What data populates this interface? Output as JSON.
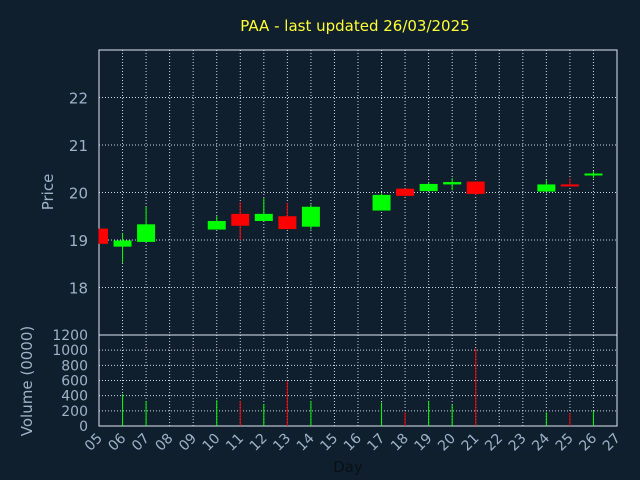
{
  "chart_data": {
    "type": "candlestick",
    "title": "PAA - last updated 26/03/2025",
    "xlabel": "Day",
    "price_label": "Price",
    "volume_label": "Volume (0000)",
    "price_ylim": [
      17,
      23
    ],
    "price_ticks": [
      18,
      19,
      20,
      21,
      22
    ],
    "volume_ylim": [
      0,
      1200
    ],
    "volume_ticks": [
      0,
      200,
      400,
      600,
      800,
      1000,
      1200
    ],
    "x_ticks": [
      "05",
      "06",
      "07",
      "08",
      "09",
      "10",
      "11",
      "12",
      "13",
      "14",
      "15",
      "16",
      "17",
      "18",
      "19",
      "20",
      "21",
      "22",
      "23",
      "24",
      "25",
      "26",
      "27"
    ],
    "grid": true,
    "colors": {
      "background": "#0f1f2e",
      "plot_border": "#dfe8f0",
      "grid": "#cfd8e0",
      "title": "#ffff33",
      "text": "#9fb3c8",
      "up": "#00ff00",
      "down": "#ff0000"
    },
    "candles": [
      {
        "day": "05",
        "open": 19.24,
        "high": 19.24,
        "low": 18.92,
        "close": 18.92
      },
      {
        "day": "06",
        "open": 18.86,
        "high": 19.14,
        "low": 18.52,
        "close": 18.99
      },
      {
        "day": "07",
        "open": 18.96,
        "high": 19.7,
        "low": 18.96,
        "close": 19.33
      },
      {
        "day": "10",
        "open": 19.22,
        "high": 19.5,
        "low": 19.22,
        "close": 19.4
      },
      {
        "day": "11",
        "open": 19.55,
        "high": 19.8,
        "low": 19.0,
        "close": 19.3
      },
      {
        "day": "12",
        "open": 19.4,
        "high": 19.88,
        "low": 19.4,
        "close": 19.55
      },
      {
        "day": "13",
        "open": 19.5,
        "high": 19.78,
        "low": 19.22,
        "close": 19.23
      },
      {
        "day": "14",
        "open": 19.28,
        "high": 19.75,
        "low": 19.22,
        "close": 19.7
      },
      {
        "day": "17",
        "open": 19.62,
        "high": 19.98,
        "low": 19.62,
        "close": 19.95
      },
      {
        "day": "18",
        "open": 20.08,
        "high": 20.08,
        "low": 19.92,
        "close": 19.93
      },
      {
        "day": "19",
        "open": 20.03,
        "high": 20.22,
        "low": 20.03,
        "close": 20.18
      },
      {
        "day": "20",
        "open": 20.17,
        "high": 20.3,
        "low": 20.05,
        "close": 20.22
      },
      {
        "day": "21",
        "open": 20.23,
        "high": 20.23,
        "low": 19.95,
        "close": 19.97
      },
      {
        "day": "24",
        "open": 20.02,
        "high": 20.26,
        "low": 20.02,
        "close": 20.17
      },
      {
        "day": "25",
        "open": 20.17,
        "high": 20.3,
        "low": 20.15,
        "close": 20.15
      },
      {
        "day": "26",
        "open": 20.37,
        "high": 20.45,
        "low": 20.3,
        "close": 20.4
      }
    ],
    "volume": [
      {
        "day": "05",
        "value": 0,
        "dir": "down"
      },
      {
        "day": "06",
        "value": 420,
        "dir": "up"
      },
      {
        "day": "07",
        "value": 330,
        "dir": "up"
      },
      {
        "day": "10",
        "value": 340,
        "dir": "up"
      },
      {
        "day": "11",
        "value": 330,
        "dir": "down"
      },
      {
        "day": "12",
        "value": 290,
        "dir": "up"
      },
      {
        "day": "13",
        "value": 590,
        "dir": "down"
      },
      {
        "day": "14",
        "value": 330,
        "dir": "up"
      },
      {
        "day": "17",
        "value": 310,
        "dir": "up"
      },
      {
        "day": "18",
        "value": 180,
        "dir": "down"
      },
      {
        "day": "19",
        "value": 330,
        "dir": "up"
      },
      {
        "day": "20",
        "value": 280,
        "dir": "up"
      },
      {
        "day": "21",
        "value": 1020,
        "dir": "down"
      },
      {
        "day": "24",
        "value": 180,
        "dir": "up"
      },
      {
        "day": "25",
        "value": 170,
        "dir": "down"
      },
      {
        "day": "26",
        "value": 200,
        "dir": "up"
      }
    ]
  }
}
